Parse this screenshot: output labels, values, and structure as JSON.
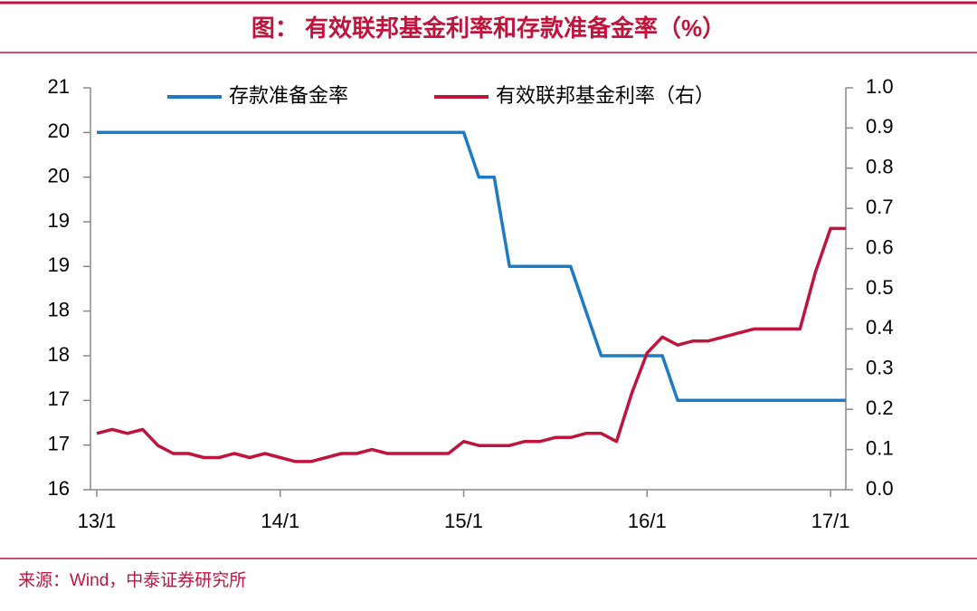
{
  "chart_data": {
    "type": "line",
    "title": "图：  有效联邦基金利率和存款准备金率（%）",
    "source": "来源：Wind，中泰证券研究所",
    "categories": [
      "13/1",
      null,
      null,
      null,
      null,
      null,
      null,
      null,
      null,
      null,
      null,
      null,
      "14/1",
      null,
      null,
      null,
      null,
      null,
      null,
      null,
      null,
      null,
      null,
      null,
      "15/1",
      null,
      null,
      null,
      null,
      null,
      null,
      null,
      null,
      null,
      null,
      null,
      "16/1",
      null,
      null,
      null,
      null,
      null,
      null,
      null,
      null,
      null,
      null,
      null,
      "17/1",
      null
    ],
    "series": [
      {
        "name": "存款准备金率",
        "color": "#1f7ac4",
        "axis": "y",
        "values": [
          20,
          20,
          20,
          20,
          20,
          20,
          20,
          20,
          20,
          20,
          20,
          20,
          20,
          20,
          20,
          20,
          20,
          20,
          20,
          20,
          20,
          20,
          20,
          20,
          20,
          19.5,
          19.5,
          18.5,
          18.5,
          18.5,
          18.5,
          18.5,
          18,
          17.5,
          17.5,
          17.5,
          17.5,
          17.5,
          17,
          17,
          17,
          17,
          17,
          17,
          17,
          17,
          17,
          17,
          17,
          17
        ]
      },
      {
        "name": "有效联邦基金利率（右）",
        "color": "#c0143c",
        "axis": "y2",
        "values": [
          0.14,
          0.15,
          0.14,
          0.15,
          0.11,
          0.09,
          0.09,
          0.08,
          0.08,
          0.09,
          0.08,
          0.09,
          0.08,
          0.07,
          0.07,
          0.08,
          0.09,
          0.09,
          0.1,
          0.09,
          0.09,
          0.09,
          0.09,
          0.09,
          0.12,
          0.11,
          0.11,
          0.11,
          0.12,
          0.12,
          0.13,
          0.13,
          0.14,
          0.14,
          0.12,
          0.24,
          0.34,
          0.38,
          0.36,
          0.37,
          0.37,
          0.38,
          0.39,
          0.4,
          0.4,
          0.4,
          0.4,
          0.54,
          0.65,
          0.65
        ]
      }
    ],
    "ylim": [
      16,
      20.5
    ],
    "yticks": [
      16,
      {
        "value": 16.5,
        "label": "17"
      },
      17,
      {
        "value": 17.5,
        "label": "18"
      },
      18,
      {
        "value": 18.5,
        "label": "19"
      },
      19,
      {
        "value": 19.5,
        "label": "20"
      },
      20,
      {
        "value": 20.5,
        "label": "21"
      }
    ],
    "y2lim": [
      0,
      1
    ],
    "y2ticks": [
      {
        "value": 0,
        "label": "0.0"
      },
      0.1,
      0.2,
      0.3,
      0.4,
      0.5,
      0.6,
      0.7,
      0.8,
      0.9,
      {
        "value": 1,
        "label": "1.0"
      }
    ],
    "grid": false,
    "legend": "top"
  }
}
